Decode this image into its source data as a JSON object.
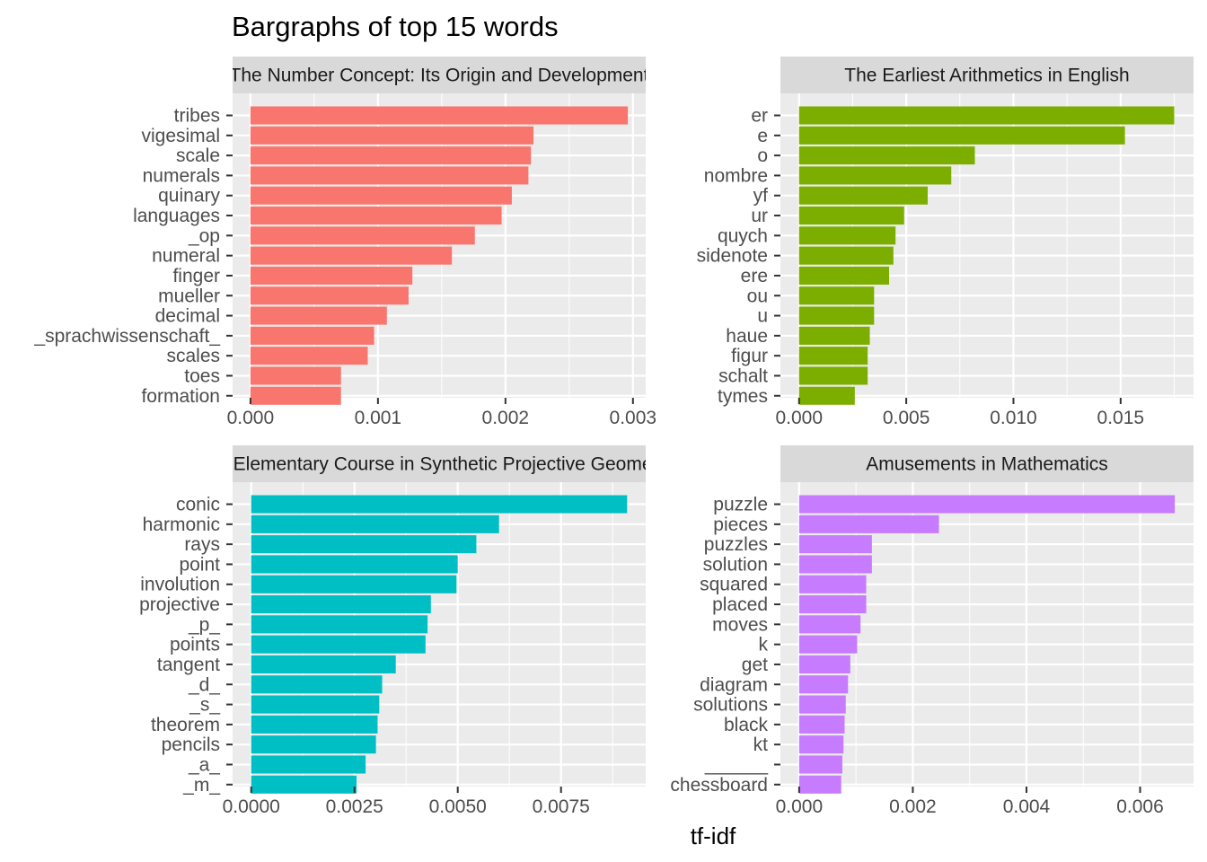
{
  "title": "Bargraphs of top 15 words",
  "xlabel": "tf-idf",
  "ylabel": "",
  "chart_data": [
    {
      "type": "bar",
      "orientation": "horizontal",
      "strip_title": "The Number Concept: Its Origin and Development",
      "color": "#F8766D",
      "categories": [
        "tribes",
        "vigesimal",
        "scale",
        "numerals",
        "quinary",
        "languages",
        "_op",
        "numeral",
        "finger",
        "mueller",
        "decimal",
        "_sprachwissenschaft_",
        "scales",
        "toes",
        "formation"
      ],
      "values": [
        0.00296,
        0.00222,
        0.0022,
        0.00218,
        0.00205,
        0.00197,
        0.00176,
        0.00158,
        0.00127,
        0.00124,
        0.00107,
        0.00097,
        0.00092,
        0.00071,
        0.00071
      ],
      "xlim": [
        -0.00014,
        0.0031
      ],
      "ticks": [
        0,
        0.001,
        0.002,
        0.003
      ],
      "tick_labels": [
        "0.000",
        "0.001",
        "0.002",
        "0.003"
      ]
    },
    {
      "type": "bar",
      "orientation": "horizontal",
      "strip_title": "The Earliest Arithmetics in English",
      "color": "#7CAE00",
      "categories": [
        "er",
        "e",
        "o",
        "nombre",
        "yf",
        "ur",
        "quych",
        "sidenote",
        "ere",
        "ou",
        "u",
        "haue",
        "figur",
        "schalt",
        "tymes"
      ],
      "values": [
        0.0175,
        0.0152,
        0.0082,
        0.0071,
        0.006,
        0.0049,
        0.0045,
        0.0044,
        0.0042,
        0.0035,
        0.0035,
        0.0033,
        0.0032,
        0.0032,
        0.0026
      ],
      "xlim": [
        -0.00087,
        0.0184
      ],
      "ticks": [
        0,
        0.005,
        0.01,
        0.015
      ],
      "tick_labels": [
        "0.000",
        "0.005",
        "0.010",
        "0.015"
      ]
    },
    {
      "type": "bar",
      "orientation": "horizontal",
      "strip_title": "An Elementary Course in Synthetic Projective Geometry",
      "color": "#00BFC4",
      "categories": [
        "conic",
        "harmonic",
        "rays",
        "point",
        "involution",
        "projective",
        "_p_",
        "points",
        "tangent",
        "_d_",
        "_s_",
        "theorem",
        "pencils",
        "_a_",
        "_m_"
      ],
      "values": [
        0.0091,
        0.006,
        0.00545,
        0.005,
        0.00497,
        0.00435,
        0.00427,
        0.00422,
        0.0035,
        0.00317,
        0.0031,
        0.00306,
        0.00302,
        0.00277,
        0.00255
      ],
      "xlim": [
        -0.00045,
        0.00955
      ],
      "ticks": [
        0,
        0.0025,
        0.005,
        0.0075
      ],
      "tick_labels": [
        "0.0000",
        "0.0025",
        "0.0050",
        "0.0075"
      ]
    },
    {
      "type": "bar",
      "orientation": "horizontal",
      "strip_title": "Amusements in Mathematics",
      "color": "#C77CFF",
      "categories": [
        "puzzle",
        "pieces",
        "puzzles",
        "solution",
        "squared",
        "placed",
        "moves",
        "k",
        "get",
        "diagram",
        "solutions",
        "black",
        "kt",
        "______",
        "chessboard"
      ],
      "values": [
        0.00661,
        0.00246,
        0.00128,
        0.00128,
        0.00118,
        0.00118,
        0.00108,
        0.00102,
        0.0009,
        0.00086,
        0.00082,
        0.0008,
        0.00078,
        0.00076,
        0.00074
      ],
      "xlim": [
        -0.00033,
        0.00694
      ],
      "ticks": [
        0,
        0.002,
        0.004,
        0.006
      ],
      "tick_labels": [
        "0.000",
        "0.002",
        "0.004",
        "0.006"
      ]
    }
  ]
}
